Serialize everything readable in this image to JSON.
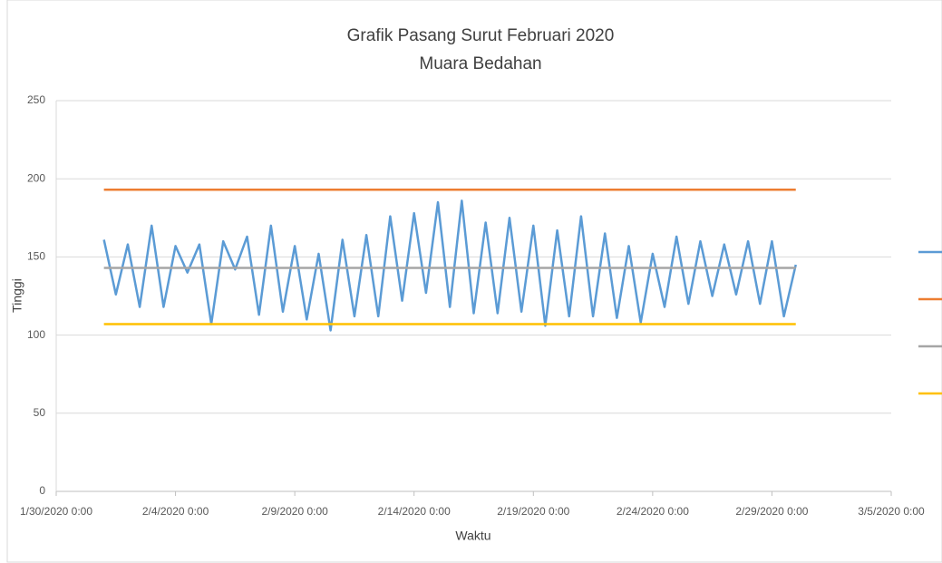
{
  "chart_data": {
    "type": "line",
    "title": "Grafik Pasang Surut Februari 2020",
    "subtitle": "Muara Bedahan",
    "x_label": "Waktu",
    "y_label": "Tinggi",
    "ylim": [
      0,
      250
    ],
    "yticks": [
      0,
      50,
      100,
      150,
      200,
      250
    ],
    "xlim": [
      "1/30/2020 0:00",
      "3/5/2020 0:00"
    ],
    "xticks": [
      "1/30/2020 0:00",
      "2/4/2020 0:00",
      "2/9/2020 0:00",
      "2/14/2020 0:00",
      "2/19/2020 0:00",
      "2/24/2020 0:00",
      "2/29/2020 0:00",
      "3/5/2020 0:00"
    ],
    "grid": true,
    "legend": "right",
    "series": [
      {
        "color": "#5b9bd5",
        "x": [
          "2/1/2020 0:00",
          "2/1/2020 12:00",
          "2/2/2020 0:00",
          "2/2/2020 12:00",
          "2/3/2020 0:00",
          "2/3/2020 12:00",
          "2/4/2020 0:00",
          "2/4/2020 12:00",
          "2/5/2020 0:00",
          "2/5/2020 12:00",
          "2/6/2020 0:00",
          "2/6/2020 12:00",
          "2/7/2020 0:00",
          "2/7/2020 12:00",
          "2/8/2020 0:00",
          "2/8/2020 12:00",
          "2/9/2020 0:00",
          "2/9/2020 12:00",
          "2/10/2020 0:00",
          "2/10/2020 12:00",
          "2/11/2020 0:00",
          "2/11/2020 12:00",
          "2/12/2020 0:00",
          "2/12/2020 12:00",
          "2/13/2020 0:00",
          "2/13/2020 12:00",
          "2/14/2020 0:00",
          "2/14/2020 12:00",
          "2/15/2020 0:00",
          "2/15/2020 12:00",
          "2/16/2020 0:00",
          "2/16/2020 12:00",
          "2/17/2020 0:00",
          "2/17/2020 12:00",
          "2/18/2020 0:00",
          "2/18/2020 12:00",
          "2/19/2020 0:00",
          "2/19/2020 12:00",
          "2/20/2020 0:00",
          "2/20/2020 12:00",
          "2/21/2020 0:00",
          "2/21/2020 12:00",
          "2/22/2020 0:00",
          "2/22/2020 12:00",
          "2/23/2020 0:00",
          "2/23/2020 12:00",
          "2/24/2020 0:00",
          "2/24/2020 12:00",
          "2/25/2020 0:00",
          "2/25/2020 12:00",
          "2/26/2020 0:00",
          "2/26/2020 12:00",
          "2/27/2020 0:00",
          "2/27/2020 12:00",
          "2/28/2020 0:00",
          "2/28/2020 12:00",
          "2/29/2020 0:00",
          "2/29/2020 12:00",
          "3/1/2020 0:00"
        ],
        "values": [
          161,
          126,
          158,
          118,
          170,
          118,
          157,
          140,
          158,
          107,
          160,
          142,
          163,
          113,
          170,
          115,
          157,
          110,
          152,
          103,
          161,
          112,
          164,
          112,
          176,
          122,
          178,
          127,
          185,
          118,
          186,
          114,
          172,
          114,
          175,
          115,
          170,
          106,
          167,
          112,
          176,
          112,
          165,
          111,
          157,
          108,
          152,
          118,
          163,
          120,
          160,
          125,
          158,
          126,
          160,
          120,
          160,
          112,
          145
        ]
      },
      {
        "color": "#ed7d31",
        "x": [
          "2/1/2020 0:00",
          "3/1/2020 0:00"
        ],
        "values": [
          193,
          193
        ]
      },
      {
        "color": "#a5a5a5",
        "x": [
          "2/1/2020 0:00",
          "3/1/2020 0:00"
        ],
        "values": [
          143,
          143
        ]
      },
      {
        "color": "#ffc000",
        "x": [
          "2/1/2020 0:00",
          "3/1/2020 0:00"
        ],
        "values": [
          107,
          107
        ]
      }
    ]
  }
}
